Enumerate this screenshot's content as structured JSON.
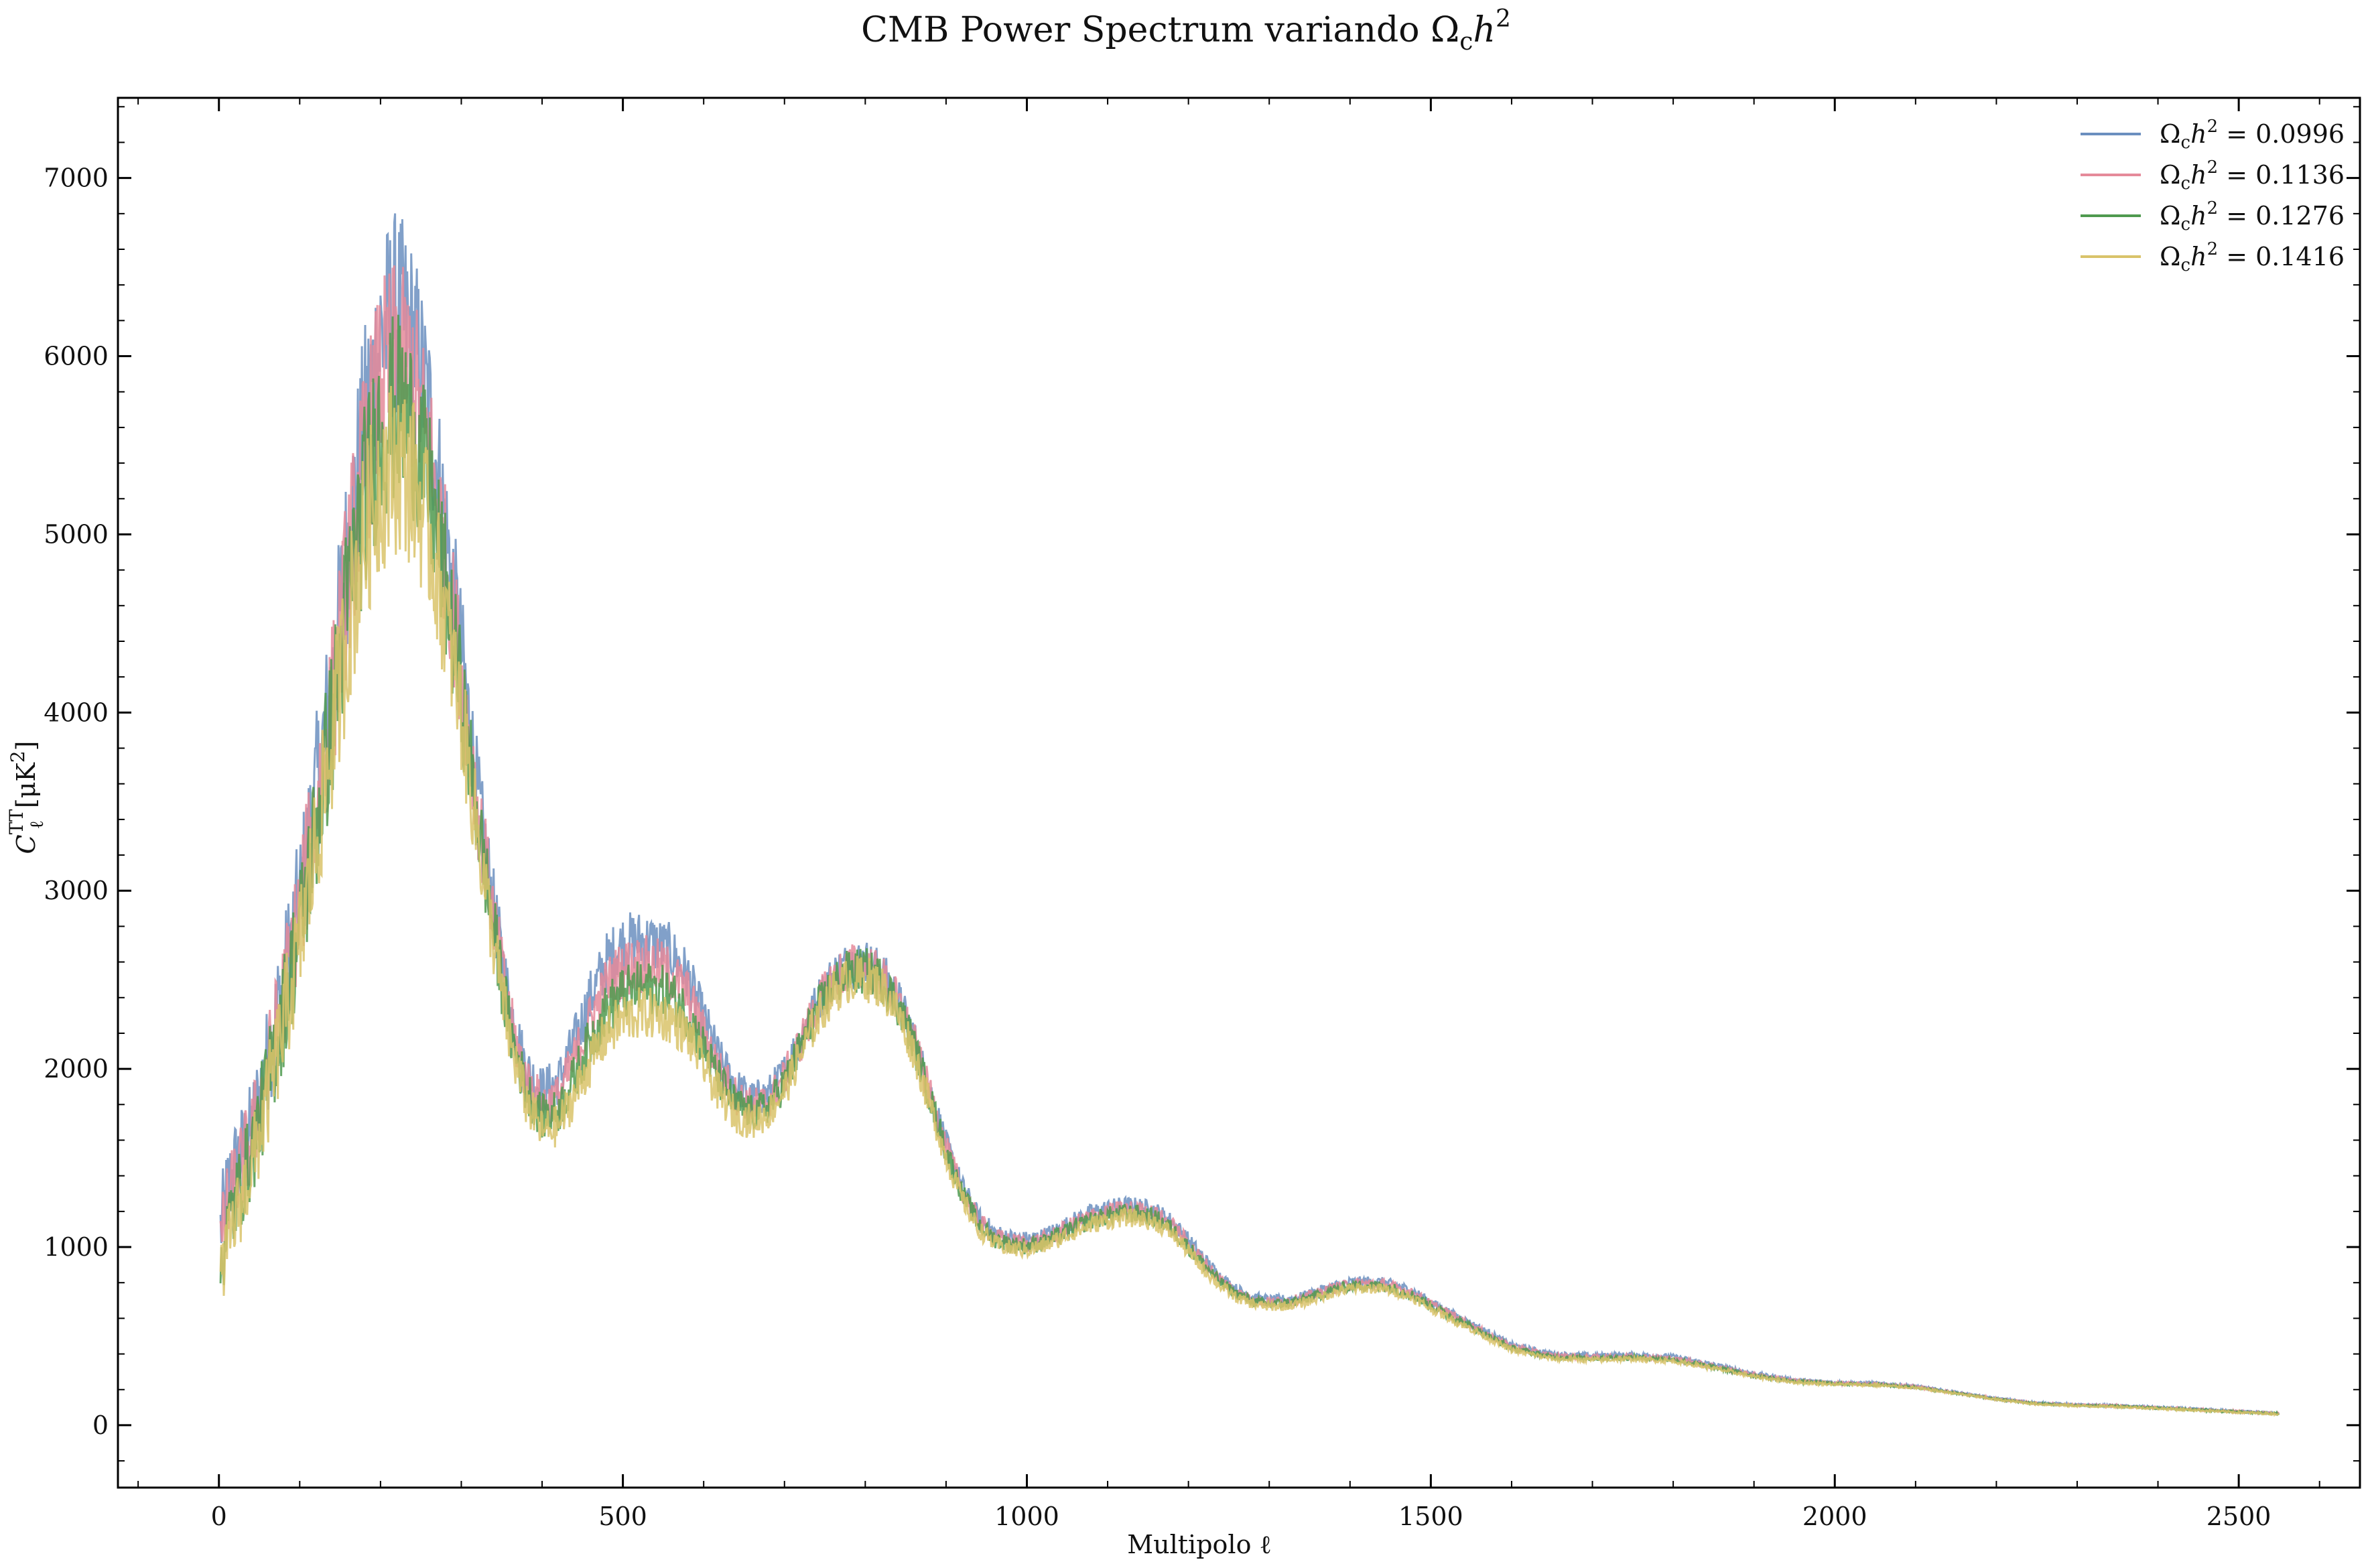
{
  "chart_data": {
    "type": "line",
    "title": "CMB Power Spectrum variando Ω",
    "title_sub": "c",
    "title_tail": "h",
    "title_sup": "2",
    "xlabel": "Multipolo ℓ",
    "ylabel_main": "C",
    "ylabel_sup": "TT",
    "ylabel_sub": "ℓ",
    "ylabel_tail": "[μK",
    "ylabel_tail_sup": "2",
    "ylabel_close": "]",
    "xlim": [
      -125,
      2650
    ],
    "ylim": [
      -350,
      7450
    ],
    "x_ticks": [
      0,
      500,
      1000,
      1500,
      2000,
      2500
    ],
    "x_tick_labels": [
      "0",
      "500",
      "1000",
      "1500",
      "2000",
      "2500"
    ],
    "y_ticks": [
      0,
      1000,
      2000,
      3000,
      4000,
      5000,
      6000,
      7000
    ],
    "y_tick_labels": [
      "0",
      "1000",
      "2000",
      "3000",
      "4000",
      "5000",
      "6000",
      "7000"
    ],
    "grid": false,
    "legend_position": "top-right",
    "legend_symbol": "Ω",
    "legend_symbol_sub": "c",
    "legend_symbol_tail": "h",
    "legend_symbol_sup": "2",
    "series": [
      {
        "name": "0.0996",
        "color": "#6b8fbf",
        "x": [
          2,
          10,
          20,
          40,
          60,
          80,
          100,
          120,
          140,
          160,
          180,
          200,
          220,
          240,
          260,
          280,
          300,
          320,
          340,
          360,
          380,
          400,
          420,
          440,
          460,
          480,
          500,
          520,
          540,
          560,
          580,
          600,
          620,
          640,
          660,
          680,
          700,
          720,
          740,
          760,
          780,
          800,
          820,
          840,
          860,
          880,
          900,
          920,
          940,
          960,
          980,
          1000,
          1020,
          1040,
          1060,
          1080,
          1100,
          1120,
          1140,
          1160,
          1180,
          1200,
          1220,
          1240,
          1260,
          1280,
          1300,
          1320,
          1340,
          1360,
          1380,
          1400,
          1420,
          1440,
          1460,
          1480,
          1500,
          1550,
          1600,
          1650,
          1700,
          1750,
          1800,
          1850,
          1900,
          1950,
          2000,
          2050,
          2100,
          2150,
          2200,
          2250,
          2300,
          2350,
          2400,
          2450,
          2500,
          2550
        ],
        "y": [
          1100,
          1300,
          1450,
          1650,
          2050,
          2500,
          2950,
          3550,
          4150,
          4950,
          5600,
          6100,
          6250,
          6100,
          5700,
          5050,
          4350,
          3550,
          2900,
          2350,
          2000,
          1880,
          1930,
          2150,
          2400,
          2600,
          2700,
          2720,
          2700,
          2650,
          2520,
          2280,
          2050,
          1900,
          1830,
          1860,
          1980,
          2180,
          2370,
          2520,
          2590,
          2600,
          2540,
          2400,
          2180,
          1880,
          1580,
          1340,
          1170,
          1080,
          1050,
          1040,
          1060,
          1100,
          1150,
          1190,
          1215,
          1230,
          1225,
          1200,
          1140,
          1040,
          930,
          830,
          760,
          720,
          700,
          705,
          720,
          750,
          780,
          800,
          805,
          800,
          780,
          745,
          690,
          570,
          450,
          400,
          390,
          395,
          385,
          340,
          290,
          255,
          240,
          235,
          220,
          185,
          150,
          125,
          115,
          110,
          100,
          90,
          78,
          68
        ]
      },
      {
        "name": "0.1136",
        "color": "#e58a9a",
        "x": [
          2,
          10,
          20,
          40,
          60,
          80,
          100,
          120,
          140,
          160,
          180,
          200,
          220,
          240,
          260,
          280,
          300,
          320,
          340,
          360,
          380,
          400,
          420,
          440,
          460,
          480,
          500,
          520,
          540,
          560,
          580,
          600,
          620,
          640,
          660,
          680,
          700,
          720,
          740,
          760,
          780,
          800,
          820,
          840,
          860,
          880,
          900,
          920,
          940,
          960,
          980,
          1000,
          1020,
          1040,
          1060,
          1080,
          1100,
          1120,
          1140,
          1160,
          1180,
          1200,
          1220,
          1240,
          1260,
          1280,
          1300,
          1320,
          1340,
          1360,
          1380,
          1400,
          1420,
          1440,
          1460,
          1480,
          1500,
          1550,
          1600,
          1650,
          1700,
          1750,
          1800,
          1850,
          1900,
          1950,
          2000,
          2050,
          2100,
          2150,
          2200,
          2250,
          2300,
          2350,
          2400,
          2450,
          2500,
          2550
        ],
        "y": [
          1000,
          1200,
          1350,
          1600,
          1980,
          2420,
          2870,
          3450,
          4050,
          4800,
          5400,
          5850,
          6000,
          5860,
          5480,
          4880,
          4220,
          3480,
          2850,
          2280,
          1940,
          1800,
          1840,
          2050,
          2280,
          2470,
          2560,
          2590,
          2580,
          2530,
          2420,
          2200,
          1990,
          1850,
          1790,
          1820,
          1950,
          2150,
          2350,
          2500,
          2570,
          2580,
          2520,
          2380,
          2160,
          1860,
          1560,
          1320,
          1150,
          1060,
          1030,
          1020,
          1040,
          1080,
          1130,
          1170,
          1195,
          1210,
          1205,
          1180,
          1120,
          1020,
          910,
          815,
          745,
          705,
          690,
          695,
          710,
          740,
          770,
          790,
          795,
          790,
          770,
          735,
          680,
          560,
          440,
          390,
          382,
          387,
          375,
          332,
          283,
          250,
          236,
          231,
          216,
          182,
          148,
          123,
          113,
          108,
          98,
          88,
          76,
          66
        ]
      },
      {
        "name": "0.1276",
        "color": "#4f9a4f",
        "x": [
          2,
          10,
          20,
          40,
          60,
          80,
          100,
          120,
          140,
          160,
          180,
          200,
          220,
          240,
          260,
          280,
          300,
          320,
          340,
          360,
          380,
          400,
          420,
          440,
          460,
          480,
          500,
          520,
          540,
          560,
          580,
          600,
          620,
          640,
          660,
          680,
          700,
          720,
          740,
          760,
          780,
          800,
          820,
          840,
          860,
          880,
          900,
          920,
          940,
          960,
          980,
          1000,
          1020,
          1040,
          1060,
          1080,
          1100,
          1120,
          1140,
          1160,
          1180,
          1200,
          1220,
          1240,
          1260,
          1280,
          1300,
          1320,
          1340,
          1360,
          1380,
          1400,
          1420,
          1440,
          1460,
          1480,
          1500,
          1550,
          1600,
          1650,
          1700,
          1750,
          1800,
          1850,
          1900,
          1950,
          2000,
          2050,
          2100,
          2150,
          2200,
          2250,
          2300,
          2350,
          2400,
          2450,
          2500,
          2550
        ],
        "y": [
          900,
          1100,
          1250,
          1520,
          1900,
          2330,
          2780,
          3350,
          3950,
          4650,
          5200,
          5600,
          5720,
          5600,
          5250,
          4720,
          4100,
          3400,
          2780,
          2220,
          1880,
          1730,
          1760,
          1950,
          2160,
          2330,
          2420,
          2450,
          2450,
          2410,
          2310,
          2120,
          1930,
          1800,
          1750,
          1790,
          1920,
          2120,
          2320,
          2470,
          2540,
          2550,
          2500,
          2360,
          2140,
          1840,
          1540,
          1300,
          1130,
          1045,
          1015,
          1005,
          1025,
          1065,
          1110,
          1150,
          1175,
          1190,
          1185,
          1160,
          1100,
          1000,
          895,
          800,
          735,
          695,
          680,
          685,
          700,
          730,
          760,
          780,
          785,
          780,
          760,
          725,
          670,
          552,
          432,
          382,
          375,
          380,
          368,
          326,
          278,
          246,
          233,
          228,
          213,
          180,
          146,
          121,
          111,
          106,
          96,
          86,
          74,
          65
        ]
      },
      {
        "name": "0.1416",
        "color": "#d9c36a",
        "x": [
          2,
          10,
          20,
          40,
          60,
          80,
          100,
          120,
          140,
          160,
          180,
          200,
          220,
          240,
          260,
          280,
          300,
          320,
          340,
          360,
          380,
          400,
          420,
          440,
          460,
          480,
          500,
          520,
          540,
          560,
          580,
          600,
          620,
          640,
          660,
          680,
          700,
          720,
          740,
          760,
          780,
          800,
          820,
          840,
          860,
          880,
          900,
          920,
          940,
          960,
          980,
          1000,
          1020,
          1040,
          1060,
          1080,
          1100,
          1120,
          1140,
          1160,
          1180,
          1200,
          1220,
          1240,
          1260,
          1280,
          1300,
          1320,
          1340,
          1360,
          1380,
          1400,
          1420,
          1440,
          1460,
          1480,
          1500,
          1550,
          1600,
          1650,
          1700,
          1750,
          1800,
          1850,
          1900,
          1950,
          2000,
          2050,
          2100,
          2150,
          2200,
          2250,
          2300,
          2350,
          2400,
          2450,
          2500,
          2550
        ],
        "y": [
          800,
          1000,
          1150,
          1440,
          1820,
          2250,
          2700,
          3250,
          3850,
          4480,
          4980,
          5300,
          5400,
          5300,
          5000,
          4550,
          3980,
          3320,
          2710,
          2160,
          1820,
          1650,
          1680,
          1850,
          2040,
          2200,
          2280,
          2310,
          2310,
          2280,
          2190,
          2020,
          1850,
          1740,
          1700,
          1750,
          1880,
          2080,
          2280,
          2430,
          2500,
          2510,
          2460,
          2320,
          2100,
          1800,
          1500,
          1270,
          1100,
          1020,
          990,
          985,
          1005,
          1045,
          1090,
          1125,
          1150,
          1165,
          1160,
          1135,
          1075,
          975,
          870,
          780,
          715,
          680,
          665,
          670,
          685,
          715,
          745,
          765,
          770,
          765,
          745,
          710,
          655,
          540,
          422,
          373,
          367,
          372,
          360,
          320,
          273,
          242,
          230,
          225,
          210,
          178,
          144,
          119,
          109,
          104,
          94,
          84,
          72,
          63
        ]
      }
    ]
  }
}
